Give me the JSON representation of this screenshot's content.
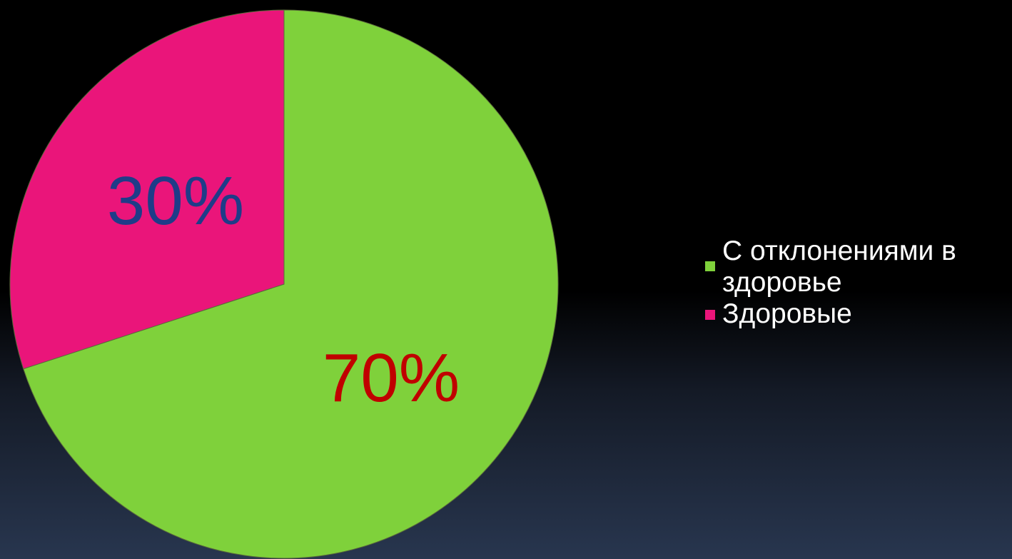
{
  "chart_data": {
    "type": "pie",
    "categories": [
      "С отклонениями в здоровье",
      "Здоровые"
    ],
    "values": [
      70,
      30
    ],
    "data_labels": [
      "70%",
      "30%"
    ],
    "colors": [
      "#7fd13b",
      "#ea157a"
    ],
    "label_colors": [
      "#c00000",
      "#1f3c88"
    ],
    "legend_position": "right"
  },
  "legend": {
    "items": [
      {
        "label": "С отклонениями в здоровье",
        "color": "#7fd13b"
      },
      {
        "label": "Здоровые",
        "color": "#ea157a"
      }
    ]
  }
}
